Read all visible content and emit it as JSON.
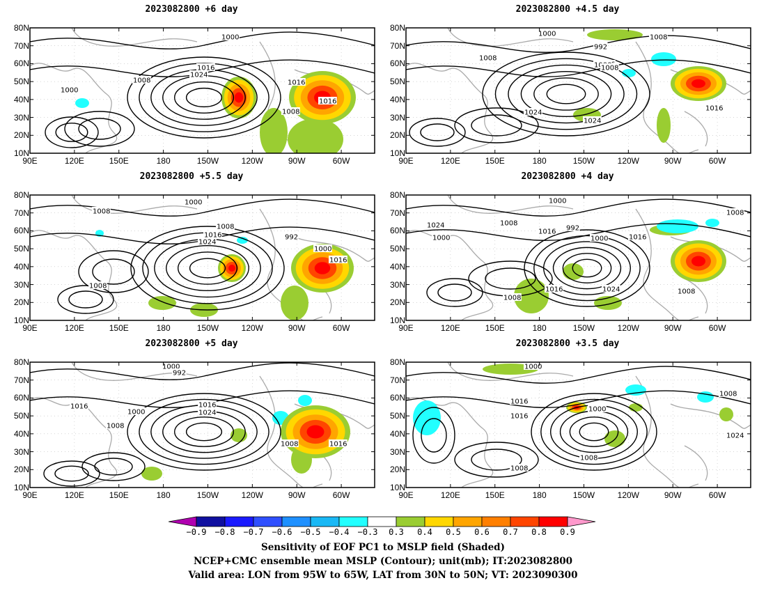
{
  "panels": [
    {
      "id": "p6",
      "title": "2023082800  +6 day",
      "labels": [
        "1000",
        "1016",
        "1024",
        "1008",
        "1016",
        "1008",
        "1016",
        "1000"
      ]
    },
    {
      "id": "p45",
      "title": "2023082800  +4.5 day",
      "labels": [
        "1000",
        "1008",
        "992",
        "1008",
        "1016",
        "1000",
        "1024",
        "1024",
        "1008",
        "1016"
      ]
    },
    {
      "id": "p55",
      "title": "2023082800  +5.5 day",
      "labels": [
        "1008",
        "1000",
        "1008",
        "1016",
        "1024",
        "992",
        "1000",
        "1016",
        "1008"
      ]
    },
    {
      "id": "p4",
      "title": "2023082800  +4 day",
      "labels": [
        "1000",
        "1024",
        "1008",
        "1016",
        "992",
        "1000",
        "1016",
        "1008",
        "1016",
        "1008",
        "1024",
        "1008",
        "1000"
      ]
    },
    {
      "id": "p5",
      "title": "2023082800  +5 day",
      "labels": [
        "1000",
        "992",
        "1016",
        "1008",
        "1000",
        "1016",
        "1024",
        "1008",
        "1016"
      ]
    },
    {
      "id": "p35",
      "title": "2023082800  +3.5 day",
      "labels": [
        "1000",
        "1008",
        "1016",
        "1016",
        "1000",
        "1024",
        "1008",
        "1008"
      ]
    }
  ],
  "axes": {
    "lat_ticks": [
      "80N",
      "70N",
      "60N",
      "50N",
      "40N",
      "30N",
      "20N",
      "10N"
    ],
    "lon_ticks": [
      "90E",
      "120E",
      "150E",
      "180",
      "150W",
      "120W",
      "90W",
      "60W"
    ]
  },
  "colorbar": {
    "levels": [
      "-0.9",
      "-0.8",
      "-0.7",
      "-0.6",
      "-0.5",
      "-0.4",
      "-0.3",
      "0.3",
      "0.4",
      "0.5",
      "0.6",
      "0.7",
      "0.8",
      "0.9"
    ],
    "colors": [
      "#b000b0",
      "#1010a0",
      "#1a1aff",
      "#2f4fff",
      "#1e90ff",
      "#19b8f5",
      "#22ffff",
      "#ffffff",
      "#9acd32",
      "#ffd700",
      "#ffa500",
      "#ff7f00",
      "#ff4500",
      "#ff0000",
      "#ff99cc"
    ]
  },
  "captions": {
    "line1": "Sensitivity of EOF PC1 to MSLP field (Shaded)",
    "line2": "NCEP+CMC ensemble mean MSLP (Contour); unit(mb); IT:2023082800",
    "line3": "Valid area: LON from 95W to 65W, LAT from 30N to 50N; VT: 2023090300"
  }
}
